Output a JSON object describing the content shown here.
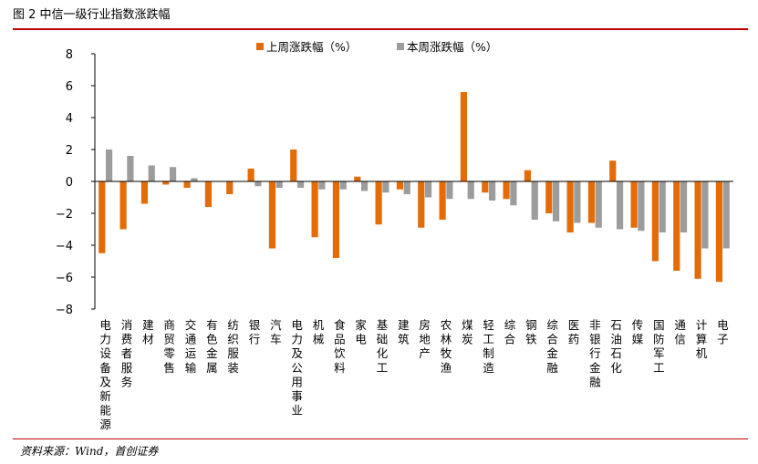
{
  "figure": {
    "title": "图 2 中信一级行业指数涨跌幅",
    "source": "资料来源：Wind，首创证券"
  },
  "chart_data": {
    "type": "bar",
    "ylim": [
      -8,
      8
    ],
    "yticks": [
      8,
      6,
      4,
      2,
      0,
      -2,
      -4,
      -6,
      -8
    ],
    "ytick_labels": [
      "8",
      "6",
      "4",
      "2",
      "0",
      "−2",
      "−4",
      "−6",
      "−8"
    ],
    "legend_position": "top-center",
    "grid": false,
    "categories": [
      "电力设备及新能源",
      "消费者服务",
      "建材",
      "商贸零售",
      "交通运输",
      "有色金属",
      "纺织服装",
      "银行",
      "汽车",
      "电力及公用事业",
      "机械",
      "食品饮料",
      "家电",
      "基础化工",
      "建筑",
      "房地产",
      "农林牧渔",
      "煤炭",
      "轻工制造",
      "综合",
      "钢铁",
      "综合金融",
      "医药",
      "非银行金融",
      "石油石化",
      "传媒",
      "国防军工",
      "通信",
      "计算机",
      "电子"
    ],
    "series": [
      {
        "name": "上周涨跌幅（%）",
        "color": "#e36c09",
        "values": [
          -4.5,
          -3.0,
          -1.4,
          -0.2,
          -0.4,
          -1.6,
          -0.8,
          0.8,
          -4.2,
          2.0,
          -3.5,
          -4.8,
          0.3,
          -2.7,
          -0.5,
          -2.9,
          -2.4,
          5.6,
          -0.7,
          -1.1,
          0.7,
          -2.0,
          -3.2,
          -2.6,
          1.3,
          -2.9,
          -5.0,
          -5.6,
          -6.1,
          -6.3
        ]
      },
      {
        "name": "本周涨跌幅（%）",
        "color": "#9c9c9c",
        "values": [
          2.0,
          1.6,
          1.0,
          0.9,
          0.2,
          0.0,
          0.0,
          -0.3,
          -0.4,
          -0.4,
          -0.5,
          -0.5,
          -0.6,
          -0.7,
          -0.8,
          -1.0,
          -1.1,
          -1.1,
          -1.2,
          -1.5,
          -2.4,
          -2.5,
          -2.6,
          -2.9,
          -3.0,
          -3.1,
          -3.2,
          -3.2,
          -4.2,
          -4.2
        ]
      }
    ]
  }
}
